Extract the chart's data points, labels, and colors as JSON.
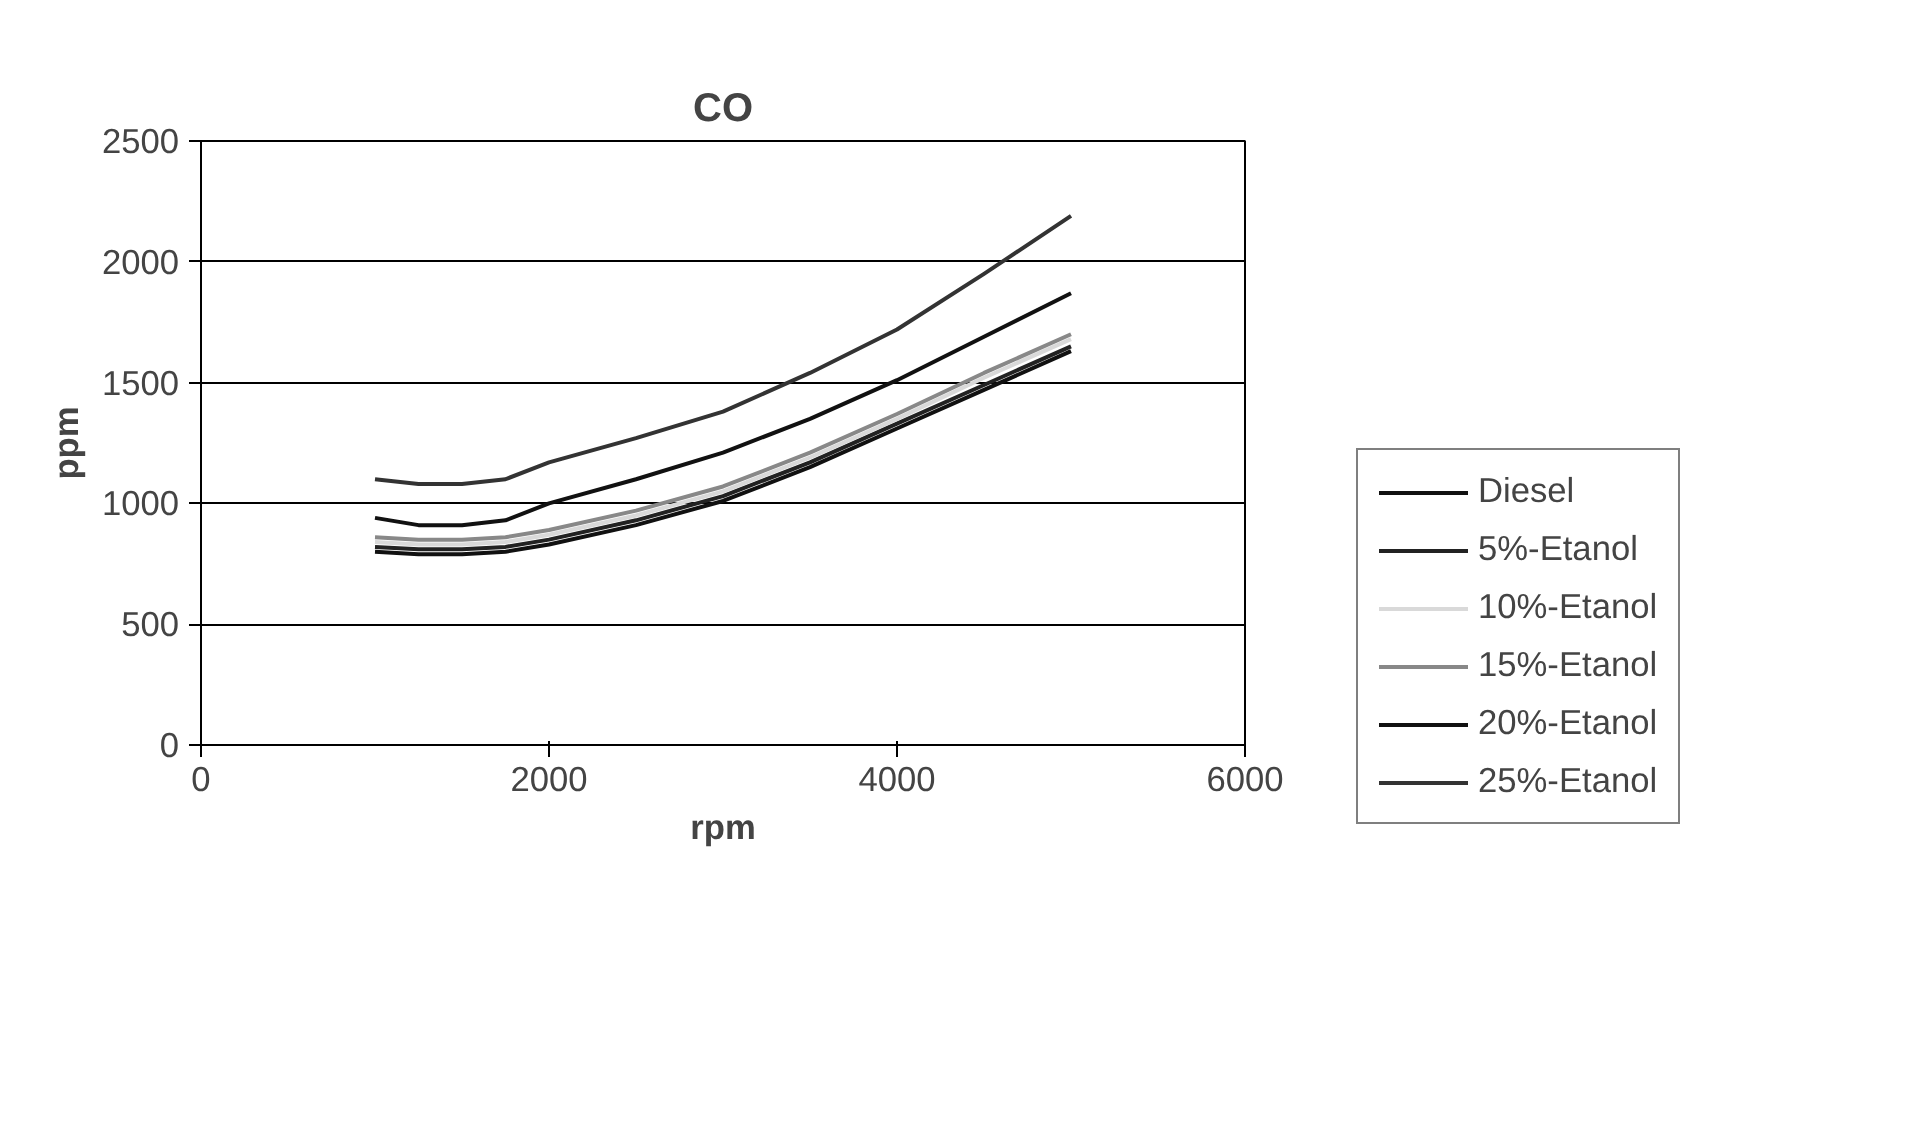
{
  "chart_data": {
    "type": "line",
    "title": "CO",
    "xlabel": "rpm",
    "ylabel": "ppm",
    "x": [
      1000,
      1250,
      1500,
      1750,
      2000,
      2500,
      3000,
      3500,
      4000,
      4500,
      5000
    ],
    "xlim": [
      0,
      6000
    ],
    "xticks": [
      0,
      2000,
      4000,
      6000
    ],
    "ylim": [
      0,
      2500
    ],
    "yticks": [
      0,
      500,
      1000,
      1500,
      2000,
      2500
    ],
    "grid": "y",
    "legend": "right",
    "marker": "none",
    "line_style": "solid",
    "series": [
      {
        "name": "Diesel",
        "color": "#111111",
        "values": [
          800,
          790,
          790,
          800,
          830,
          910,
          1010,
          1150,
          1310,
          1470,
          1630
        ]
      },
      {
        "name": "5%-Etanol",
        "color": "#222222",
        "values": [
          820,
          810,
          810,
          820,
          850,
          930,
          1030,
          1170,
          1330,
          1490,
          1650
        ]
      },
      {
        "name": "10%-Etanol",
        "color": "#d9d9d9",
        "values": [
          840,
          830,
          830,
          840,
          870,
          950,
          1050,
          1190,
          1350,
          1520,
          1680
        ]
      },
      {
        "name": "15%-Etanol",
        "color": "#888888",
        "values": [
          860,
          850,
          850,
          860,
          890,
          970,
          1070,
          1210,
          1370,
          1540,
          1700
        ]
      },
      {
        "name": "20%-Etanol",
        "color": "#111111",
        "values": [
          940,
          910,
          910,
          930,
          1000,
          1100,
          1210,
          1350,
          1510,
          1690,
          1870
        ]
      },
      {
        "name": "25%-Etanol",
        "color": "#333333",
        "values": [
          1100,
          1080,
          1080,
          1100,
          1170,
          1270,
          1380,
          1540,
          1720,
          1950,
          2190
        ]
      }
    ]
  }
}
